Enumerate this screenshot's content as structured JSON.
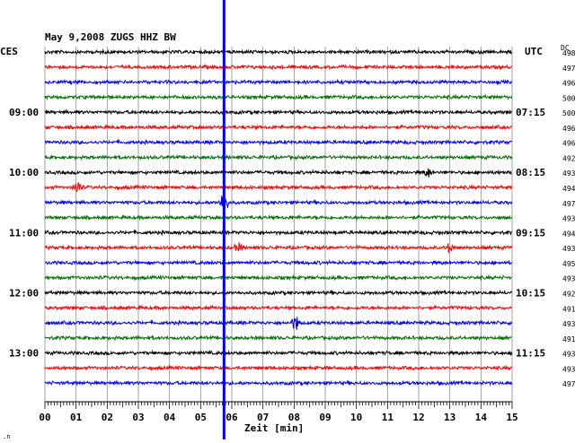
{
  "chart_data": {
    "type": "line",
    "title": "May 9,2008   ZUGS HHZ BW",
    "left_zone": "CES",
    "right_zone": "UTC",
    "dc_header": "DC",
    "xlabel": "Zeit [min]",
    "xlim": [
      0,
      15
    ],
    "x_ticks": [
      "00",
      "01",
      "02",
      "03",
      "04",
      "05",
      "06",
      "07",
      "08",
      "09",
      "10",
      "11",
      "12",
      "13",
      "14",
      "15"
    ],
    "trace_colors": [
      "#000000",
      "#ff0000",
      "#0000ff",
      "#007000"
    ],
    "marker_color": "#0000ff",
    "marker_minute": 5.75,
    "left_hour_labels": [
      {
        "trace": 4,
        "label": "09:00"
      },
      {
        "trace": 8,
        "label": "10:00"
      },
      {
        "trace": 12,
        "label": "11:00"
      },
      {
        "trace": 16,
        "label": "12:00"
      },
      {
        "trace": 20,
        "label": "13:00"
      }
    ],
    "right_hour_labels": [
      {
        "trace": 4,
        "label": "07:15"
      },
      {
        "trace": 8,
        "label": "08:15"
      },
      {
        "trace": 12,
        "label": "09:15"
      },
      {
        "trace": 16,
        "label": "10:15"
      },
      {
        "trace": 20,
        "label": "11:15"
      }
    ],
    "dc_values": [
      "498",
      "497",
      "496",
      "500",
      "500",
      "496",
      "496",
      "492",
      "493",
      "494",
      "497",
      "493",
      "494",
      "493",
      "495",
      "493",
      "492",
      "491",
      "493",
      "491",
      "493",
      "493",
      "497"
    ],
    "events": [
      {
        "trace": 10,
        "minute": 5.75,
        "amplitude": 1.0
      },
      {
        "trace": 9,
        "minute": 1.05,
        "amplitude": 0.5
      },
      {
        "trace": 8,
        "minute": 12.3,
        "amplitude": 0.35
      },
      {
        "trace": 13,
        "minute": 13.0,
        "amplitude": 0.4
      },
      {
        "trace": 18,
        "minute": 8.05,
        "amplitude": 0.6
      },
      {
        "trace": 13,
        "minute": 6.2,
        "amplitude": 0.3
      }
    ]
  }
}
